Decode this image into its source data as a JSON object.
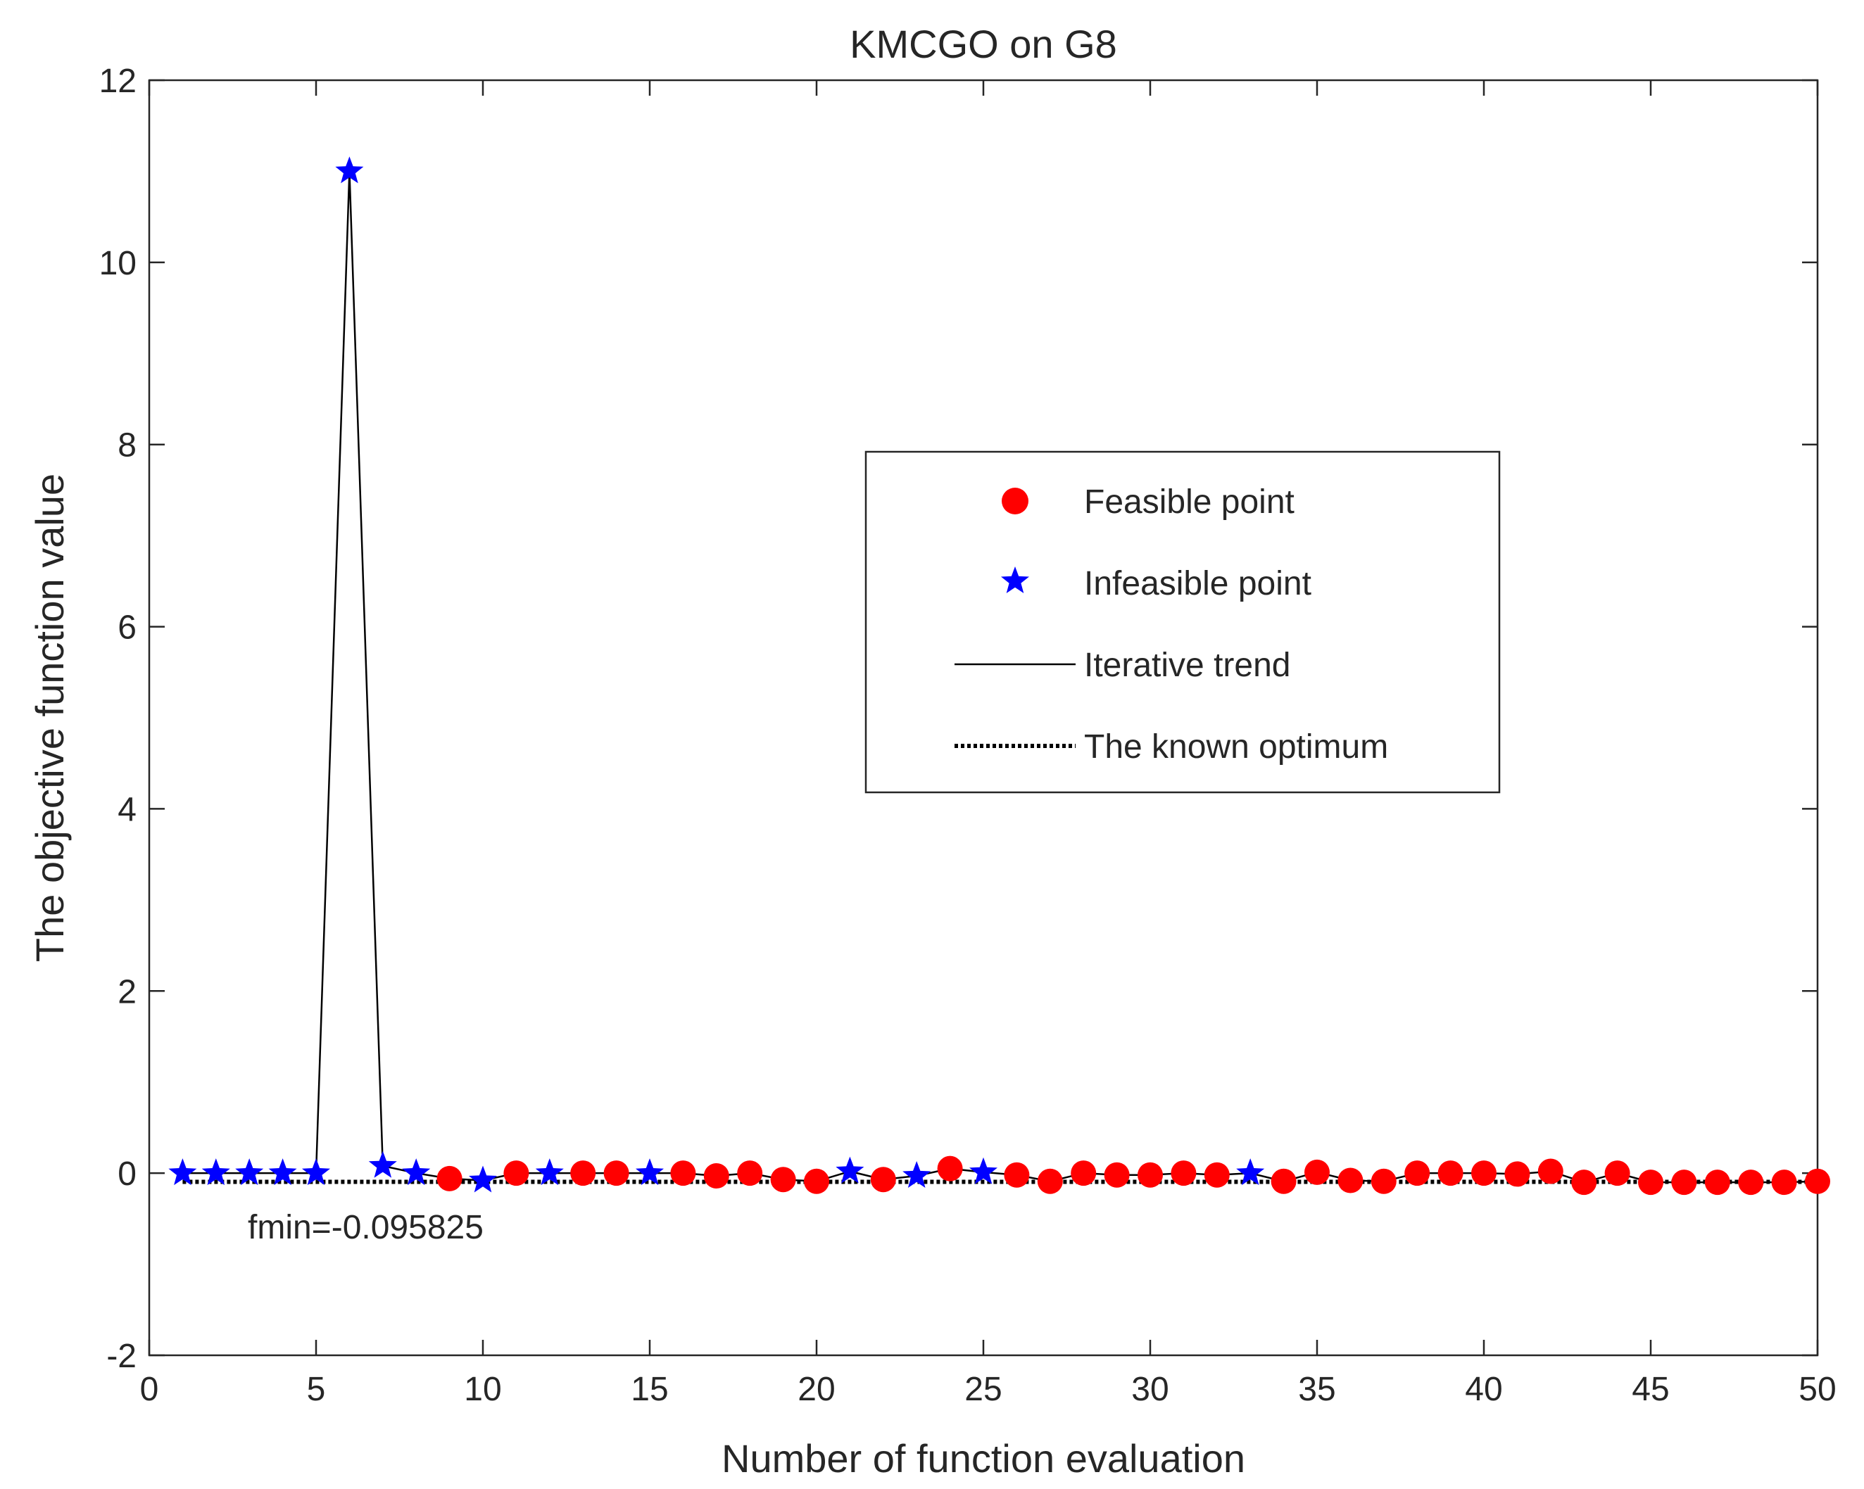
{
  "chart_data": {
    "type": "scatter",
    "title": "KMCGO on G8",
    "xlabel": "Number of function evaluation",
    "ylabel": "The objective function value",
    "xlim": [
      0,
      50
    ],
    "ylim": [
      -2,
      12
    ],
    "xticks": [
      0,
      5,
      10,
      15,
      20,
      25,
      30,
      35,
      40,
      45,
      50
    ],
    "yticks": [
      -2,
      0,
      2,
      4,
      6,
      8,
      10,
      12
    ],
    "grid": false,
    "legend_position": "upper-right-center",
    "legend": [
      {
        "label": "Feasible point",
        "marker": "circle",
        "color": "#ff0000"
      },
      {
        "label": "Infeasible point",
        "marker": "star",
        "color": "#0000ff"
      },
      {
        "label": "Iterative trend",
        "line": "solid",
        "color": "#000000"
      },
      {
        "label": "The known optimum",
        "line": "dotted",
        "color": "#000000"
      }
    ],
    "series": [
      {
        "name": "Iterative trend",
        "x": [
          1,
          2,
          3,
          4,
          5,
          6,
          7,
          8,
          9,
          10,
          11,
          12,
          13,
          14,
          15,
          16,
          17,
          18,
          19,
          20,
          21,
          22,
          23,
          24,
          25,
          26,
          27,
          28,
          29,
          30,
          31,
          32,
          33,
          34,
          35,
          36,
          37,
          38,
          39,
          40,
          41,
          42,
          43,
          44,
          45,
          46,
          47,
          48,
          49,
          50
        ],
        "y": [
          0.0,
          0.0,
          0.0,
          0.0,
          0.0,
          11.0,
          0.08,
          0.0,
          -0.06,
          -0.08,
          0.0,
          0.0,
          0.0,
          0.0,
          0.0,
          0.0,
          -0.03,
          0.0,
          -0.07,
          -0.09,
          0.02,
          -0.07,
          -0.03,
          0.05,
          0.01,
          -0.02,
          -0.09,
          0.0,
          -0.02,
          -0.02,
          0.0,
          -0.02,
          0.0,
          -0.09,
          0.01,
          -0.08,
          -0.09,
          0.0,
          0.0,
          0.0,
          -0.01,
          0.02,
          -0.1,
          0.0,
          -0.1,
          -0.1,
          -0.1,
          -0.1,
          -0.1,
          -0.09
        ]
      }
    ],
    "feasible": [
      9,
      11,
      13,
      14,
      16,
      17,
      18,
      19,
      20,
      22,
      24,
      26,
      27,
      28,
      29,
      30,
      31,
      32,
      34,
      35,
      36,
      37,
      38,
      39,
      40,
      41,
      42,
      43,
      44,
      45,
      46,
      47,
      48,
      49,
      50
    ],
    "infeasible": [
      1,
      2,
      3,
      4,
      5,
      6,
      7,
      8,
      10,
      12,
      15,
      21,
      23,
      25,
      33
    ],
    "known_optimum": -0.095825,
    "annotation": "fmin=-0.095825"
  },
  "colors": {
    "feasible": "#ff0000",
    "infeasible": "#0000ff",
    "line": "#000000",
    "axis": "#262626"
  }
}
